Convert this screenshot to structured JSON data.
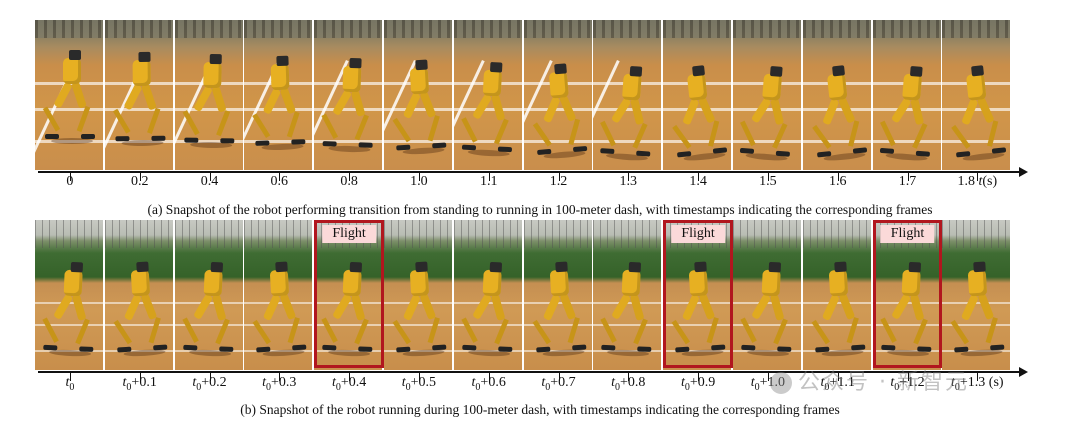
{
  "strip_a": {
    "frames": 14,
    "ticks": [
      "0",
      "0.2",
      "0.4",
      "0.6",
      "0.8",
      "1.0",
      "1.1",
      "1.2",
      "1.3",
      "1.4",
      "1.5",
      "1.6",
      "1.7",
      "1.8"
    ],
    "axis_unit_var": "t",
    "axis_unit_suffix": "(s)",
    "caption": "(a) Snapshot of the robot performing transition from standing to running in 100-meter dash, with timestamps indicating the corresponding frames"
  },
  "strip_b": {
    "frames": 14,
    "tick_var": "t",
    "tick_sub": "0",
    "ticks_suffix": [
      "",
      "+0.1",
      "+0.2",
      "+0.3",
      "+0.4",
      "+0.5",
      "+0.6",
      "+0.7",
      "+0.8",
      "+0.9",
      "+1.0",
      "+1.1",
      "+1.2",
      "+1.3"
    ],
    "axis_unit_suffix": "(s)",
    "flight_label": "Flight",
    "flight_frames": [
      4,
      9,
      12
    ],
    "caption": "(b) Snapshot of the robot running during 100-meter dash, with timestamps indicating the corresponding frames"
  },
  "watermark": "公众号 · 新智元",
  "colors": {
    "flight_border": "#b1161e",
    "flight_label_bg": "#fbd9d9",
    "robot": "#e7b022",
    "track": "#d19649",
    "grass": "#356229"
  }
}
